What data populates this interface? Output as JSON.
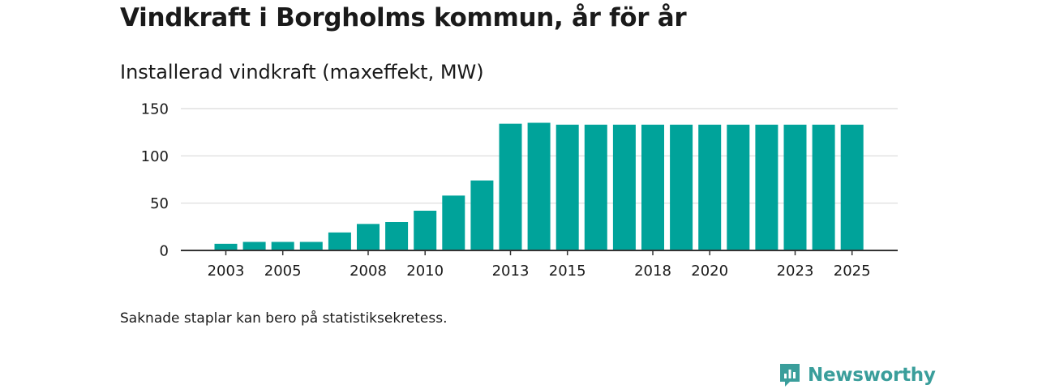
{
  "header": {
    "title": "Vindkraft i Borgholms kommun, år för år",
    "subtitle": "Installerad vindkraft (maxeffekt, MW)"
  },
  "footnote": "Saknade staplar kan bero på statistiksekretess.",
  "brand": {
    "name": "Newsworthy",
    "icon": "newsworthy-logo-icon",
    "color": "#3a9e9b"
  },
  "colors": {
    "bar": "#00a39a",
    "grid": "#d9d9d9",
    "axis": "#333333"
  },
  "chart_data": {
    "type": "bar",
    "title": "Installerad vindkraft (maxeffekt, MW)",
    "xlabel": "",
    "ylabel": "",
    "ylim": [
      0,
      150
    ],
    "yticks": [
      0,
      50,
      100,
      150
    ],
    "xticks": [
      "2003",
      "2005",
      "2008",
      "2010",
      "2013",
      "2015",
      "2018",
      "2020",
      "2023",
      "2025"
    ],
    "categories": [
      "2003",
      "2004",
      "2005",
      "2006",
      "2007",
      "2008",
      "2009",
      "2010",
      "2011",
      "2012",
      "2013",
      "2014",
      "2015",
      "2016",
      "2017",
      "2018",
      "2019",
      "2020",
      "2021",
      "2022",
      "2023",
      "2024",
      "2025"
    ],
    "values": [
      7,
      9,
      9,
      9,
      19,
      28,
      30,
      42,
      58,
      74,
      134,
      135,
      133,
      133,
      133,
      133,
      133,
      133,
      133,
      133,
      133,
      133,
      133
    ],
    "grid": true
  }
}
